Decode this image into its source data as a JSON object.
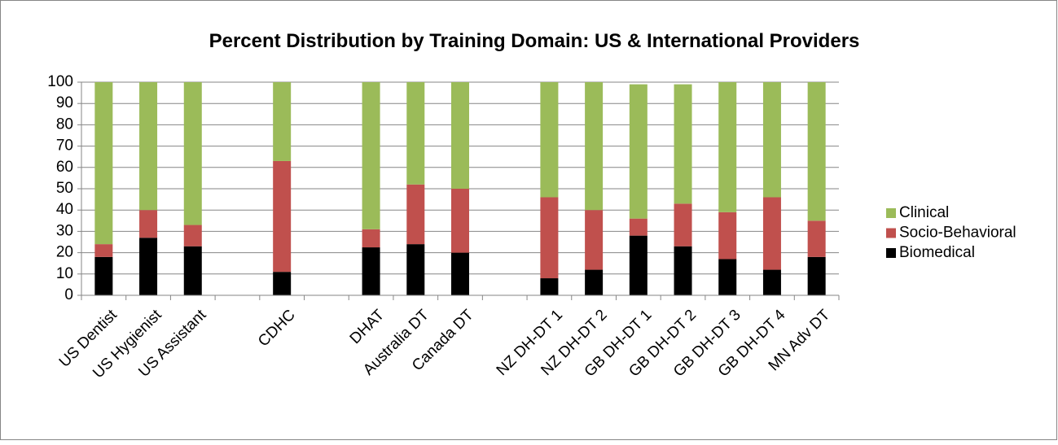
{
  "chart_data": {
    "type": "stacked_bar",
    "title": "Percent Distribution by Training Domain: US & International Providers",
    "categories": [
      "US Dentist",
      "US Hygienist",
      "US Assistant",
      null,
      "CDHC",
      null,
      "DHAT",
      "Australia DT",
      "Canada DT",
      null,
      "NZ DH-DT 1",
      "NZ DH-DT 2",
      "GB DH-DT 1",
      "GB DH-DT 2",
      "GB DH-DT 3",
      "GB DH-DT 4",
      "MN Adv DT"
    ],
    "series": [
      {
        "name": "Biomedical",
        "color": "#000000",
        "values": [
          18,
          27,
          23,
          null,
          11,
          null,
          22.5,
          24,
          20,
          null,
          8,
          12,
          28,
          23,
          17,
          12,
          18
        ]
      },
      {
        "name": "Socio-Behavioral",
        "color": "#c0504d",
        "values": [
          6,
          13,
          10,
          null,
          52,
          null,
          8.5,
          28,
          30,
          null,
          38,
          28,
          8,
          20,
          22,
          34,
          17
        ]
      },
      {
        "name": "Clinical",
        "color": "#9bbb59",
        "values": [
          76,
          60,
          67,
          null,
          37,
          null,
          69,
          48,
          50,
          null,
          54,
          60,
          63,
          56,
          61,
          54,
          65
        ]
      }
    ],
    "ylim": [
      0,
      100
    ],
    "yticks": [
      0,
      10,
      20,
      30,
      40,
      50,
      60,
      70,
      80,
      90,
      100
    ],
    "grid": true,
    "legend": "right"
  }
}
